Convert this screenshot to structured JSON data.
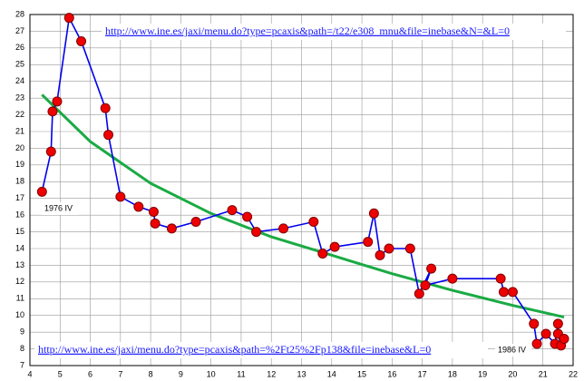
{
  "chart_data": {
    "type": "line",
    "xlim": [
      4,
      22
    ],
    "xticks": [
      4,
      5,
      6,
      7,
      8,
      9,
      10,
      11,
      12,
      13,
      14,
      15,
      16,
      17,
      18,
      19,
      20,
      21,
      22
    ],
    "ylim": [
      7,
      28
    ],
    "yticks": [
      7,
      8,
      9,
      10,
      11,
      12,
      13,
      14,
      15,
      16,
      17,
      18,
      19,
      20,
      21,
      22,
      23,
      24,
      25,
      26,
      27,
      28
    ],
    "grid": true,
    "series": [
      {
        "color": "#0000ee",
        "marker_color": "#ee0000",
        "x": [
          4.4,
          4.7,
          4.75,
          4.9,
          5.3,
          5.7,
          6.5,
          6.6,
          7.0,
          7.6,
          8.1,
          8.15,
          8.7,
          9.5,
          10.7,
          11.2,
          11.5,
          12.4,
          13.4,
          13.7,
          14.1,
          15.2,
          15.4,
          15.6,
          15.9,
          16.6,
          16.9,
          17.3,
          17.1,
          18.0,
          19.6,
          19.7,
          20.0,
          20.7,
          20.8,
          21.1,
          21.4,
          21.5,
          21.5,
          21.6,
          21.7
        ],
        "values": [
          17.4,
          19.8,
          22.2,
          22.8,
          27.8,
          26.4,
          22.4,
          20.8,
          17.1,
          16.5,
          16.2,
          15.5,
          15.2,
          15.6,
          16.3,
          15.9,
          15.0,
          15.2,
          15.6,
          13.7,
          14.1,
          14.4,
          16.1,
          13.6,
          14.0,
          14.0,
          11.3,
          12.8,
          11.8,
          12.2,
          12.2,
          11.4,
          11.4,
          9.5,
          8.3,
          8.9,
          8.3,
          9.5,
          8.9,
          8.2,
          8.6
        ]
      },
      {
        "color": "#1aaa44",
        "x": [
          4.4,
          6,
          8,
          10,
          12,
          14,
          16,
          18,
          20,
          21.7
        ],
        "values": [
          23.2,
          20.4,
          17.9,
          16.1,
          14.7,
          13.6,
          12.5,
          11.5,
          10.6,
          9.9
        ]
      }
    ],
    "annotations": [
      "1976 IV",
      "1986 IV"
    ],
    "links": [
      "http://www.ine.es/jaxi/menu.do?type=pcaxis&path=/t22/e308_mnu&file=inebase&N=&L=0",
      "http://www.ine.es/jaxi/menu.do?type=pcaxis&path=%2Ft25%2Fp138&file=inebase&L=0"
    ]
  }
}
